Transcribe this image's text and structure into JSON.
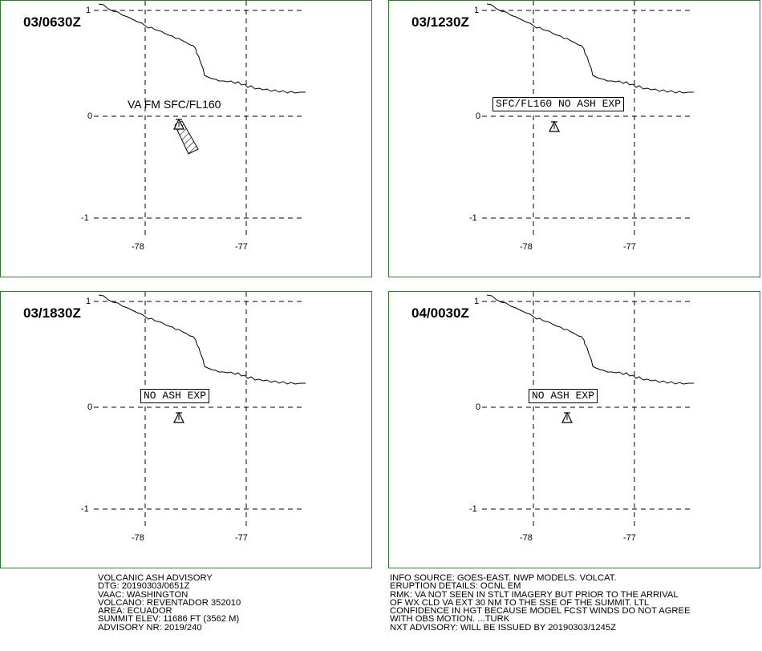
{
  "panels": [
    {
      "time": "03/0630Z",
      "label": "VA FM SFC/FL160",
      "label_boxed": false,
      "ash_cloud": true,
      "ticks": {
        "lat_top": "1",
        "lat_mid": "0",
        "lat_bottom": "-1",
        "lon_left": "-78",
        "lon_right": "-77"
      }
    },
    {
      "time": "03/1230Z",
      "label": "SFC/FL160 NO ASH EXP",
      "label_boxed": true,
      "ash_cloud": false,
      "ticks": {
        "lat_top": "1",
        "lat_mid": "0",
        "lat_bottom": "-1",
        "lon_left": "-78",
        "lon_right": "-77"
      }
    },
    {
      "time": "03/1830Z",
      "label": "NO ASH EXP",
      "label_boxed": true,
      "ash_cloud": false,
      "ticks": {
        "lat_top": "1",
        "lat_mid": "0",
        "lat_bottom": "-1",
        "lon_left": "-78",
        "lon_right": "-77"
      }
    },
    {
      "time": "04/0030Z",
      "label": "NO ASH EXP",
      "label_boxed": true,
      "ash_cloud": false,
      "ticks": {
        "lat_top": "1",
        "lat_mid": "0",
        "lat_bottom": "-1",
        "lon_left": "-78",
        "lon_right": "-77"
      }
    }
  ],
  "advisory_left": [
    "VOLCANIC ASH ADVISORY",
    "DTG: 20190303/0651Z",
    "VAAC: WASHINGTON",
    "VOLCANO: REVENTADOR 352010",
    "AREA: ECUADOR",
    "SUMMIT ELEV: 11686 FT (3562 M)",
    "ADVISORY NR: 2019/240"
  ],
  "advisory_right": [
    "INFO SOURCE: GOES-EAST. NWP MODELS. VOLCAT.",
    "ERUPTION DETAILS: OCNL EM",
    "RMK: VA NOT SEEN IN STLT IMAGERY BUT PRIOR TO THE ARRIVAL",
    "OF WX CLD VA EXT 30 NM TO THE SSE OF THE SUMMIT. LTL",
    "CONFIDENCE IN HGT BECAUSE MODEL FCST WINDS DO NOT AGREE",
    "WITH OBS MOTION. ...TURK",
    "NXT ADVISORY: WILL BE ISSUED BY 20190303/1245Z"
  ],
  "colors": {
    "panel_border": "#2e7d2e",
    "lines": "#000000"
  },
  "icons": {
    "volcano": "volcano-triangle-icon"
  }
}
